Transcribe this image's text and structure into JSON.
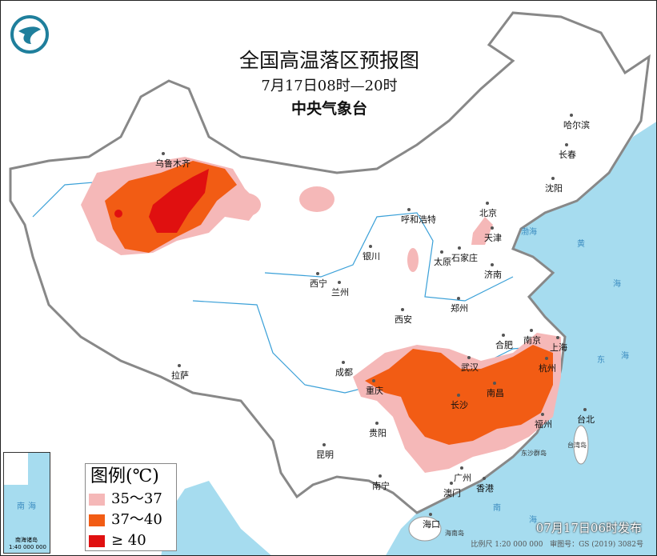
{
  "header": {
    "title": "全国高温落区预报图",
    "period": "7月17日08时—20时",
    "issuer": "中央气象台"
  },
  "logo": {
    "icon": "cma-logo-icon",
    "color": "#1f7f9c"
  },
  "legend": {
    "title": "图例(℃)",
    "items": [
      {
        "label": "35～37",
        "color": "#f5b8b8"
      },
      {
        "label": "37～40",
        "color": "#f25c14"
      },
      {
        "label": "≥ 40",
        "color": "#e01010"
      }
    ]
  },
  "cities": [
    "乌鲁木齐",
    "哈尔滨",
    "长春",
    "沈阳",
    "北京",
    "天津",
    "呼和浩特",
    "太原",
    "石家庄",
    "银川",
    "济南",
    "西宁",
    "兰州",
    "郑州",
    "西安",
    "合肥",
    "南京",
    "上海",
    "武汉",
    "杭州",
    "成都",
    "拉萨",
    "重庆",
    "长沙",
    "南昌",
    "福州",
    "台北",
    "贵阳",
    "昆明",
    "南宁",
    "广州",
    "香港",
    "澳门",
    "海口"
  ],
  "sea_labels": [
    "渤海",
    "黄",
    "海",
    "东",
    "海",
    "南",
    "海",
    "台湾岛",
    "海南岛",
    "东沙群岛"
  ],
  "inset": {
    "labels": [
      "南",
      "海",
      "南海诸岛"
    ],
    "scale": "1:40 000 000"
  },
  "footer": {
    "issued": "07月17日06时发布",
    "scale": "比例尺 1:20 000 000",
    "review": "审图号：GS (2019) 3082号"
  },
  "colors": {
    "ocean": "#a6dcef",
    "land": "#ffffff",
    "border": "#888888",
    "river": "#3aa0d8"
  }
}
